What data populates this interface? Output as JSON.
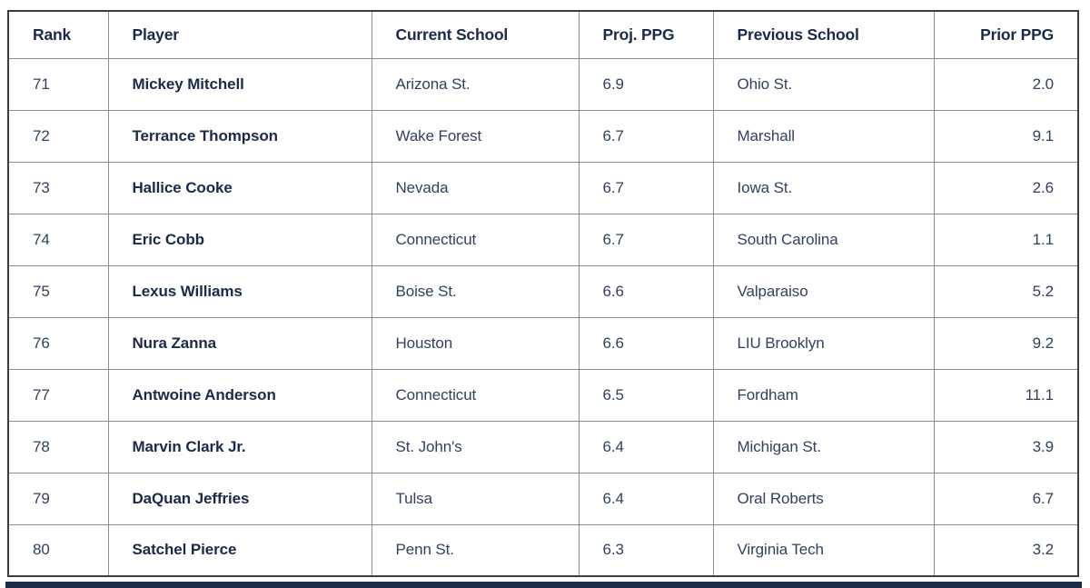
{
  "chart_data": {
    "type": "table",
    "columns": [
      "Rank",
      "Player",
      "Current School",
      "Proj. PPG",
      "Previous School",
      "Prior PPG"
    ],
    "column_align": [
      "left",
      "left",
      "left",
      "left",
      "left",
      "right"
    ],
    "rows": [
      [
        "71",
        "Mickey Mitchell",
        "Arizona St.",
        "6.9",
        "Ohio St.",
        "2.0"
      ],
      [
        "72",
        "Terrance Thompson",
        "Wake Forest",
        "6.7",
        "Marshall",
        "9.1"
      ],
      [
        "73",
        "Hallice Cooke",
        "Nevada",
        "6.7",
        "Iowa St.",
        "2.6"
      ],
      [
        "74",
        "Eric Cobb",
        "Connecticut",
        "6.7",
        "South Carolina",
        "1.1"
      ],
      [
        "75",
        "Lexus Williams",
        "Boise St.",
        "6.6",
        "Valparaiso",
        "5.2"
      ],
      [
        "76",
        "Nura Zanna",
        "Houston",
        "6.6",
        "LIU Brooklyn",
        "9.2"
      ],
      [
        "77",
        "Antwoine Anderson",
        "Connecticut",
        "6.5",
        "Fordham",
        "11.1"
      ],
      [
        "78",
        "Marvin Clark Jr.",
        "St. John's",
        "6.4",
        "Michigan St.",
        "3.9"
      ],
      [
        "79",
        "DaQuan Jeffries",
        "Tulsa",
        "6.4",
        "Oral Roberts",
        "6.7"
      ],
      [
        "80",
        "Satchel Pierce",
        "Penn St.",
        "6.3",
        "Virginia Tech",
        "3.2"
      ]
    ]
  },
  "colors": {
    "text_bold": "#1b2a4a",
    "text_regular": "#31415f",
    "border_inner": "#8c8c8c",
    "border_outer": "#3e3e3e",
    "next_section_bar": "#1d2b4a"
  }
}
